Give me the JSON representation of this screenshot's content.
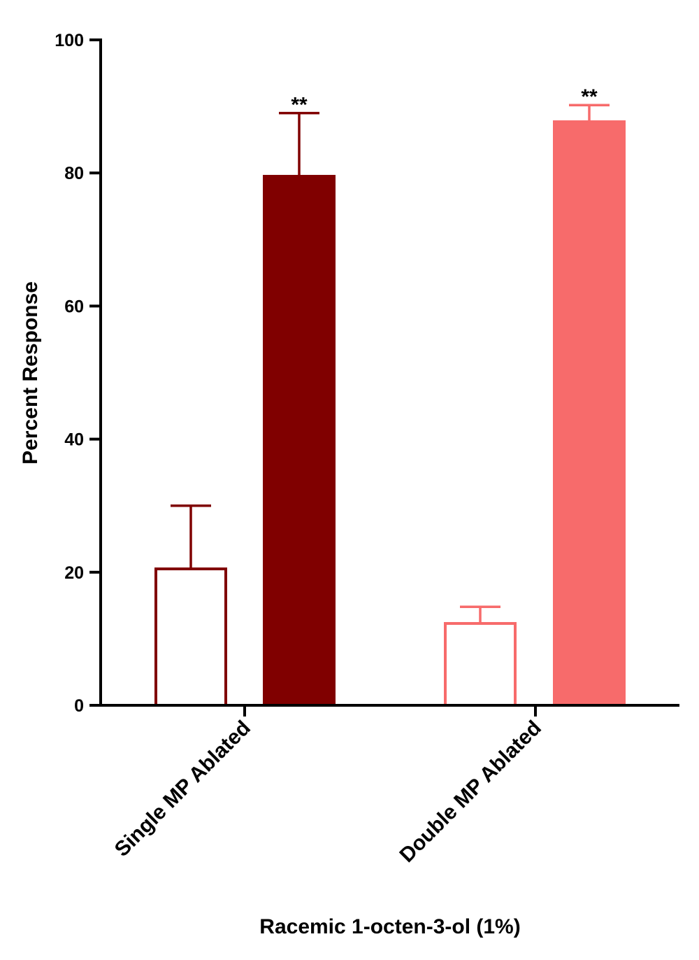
{
  "chart_data": {
    "type": "bar",
    "categories": [
      "Single MP Ablated",
      "Double MP Ablated"
    ],
    "bars": [
      {
        "category": 0,
        "style": "open",
        "color": "#800000",
        "value": 20.5,
        "error": 9.5,
        "annotation": ""
      },
      {
        "category": 0,
        "style": "filled",
        "color": "#800000",
        "value": 79.5,
        "error": 9.5,
        "annotation": "**"
      },
      {
        "category": 1,
        "style": "open",
        "color": "#F76B6B",
        "value": 12.3,
        "error": 2.5,
        "annotation": ""
      },
      {
        "category": 1,
        "style": "filled",
        "color": "#F76B6B",
        "value": 87.7,
        "error": 2.5,
        "annotation": "**"
      }
    ],
    "title": "",
    "xlabel": "Racemic 1-octen-3-ol (1%)",
    "ylabel": "Percent Response",
    "ylim": [
      0,
      100
    ],
    "yticks": [
      "0",
      "20",
      "40",
      "60",
      "80",
      "100"
    ],
    "grid": false,
    "legend": "none"
  }
}
